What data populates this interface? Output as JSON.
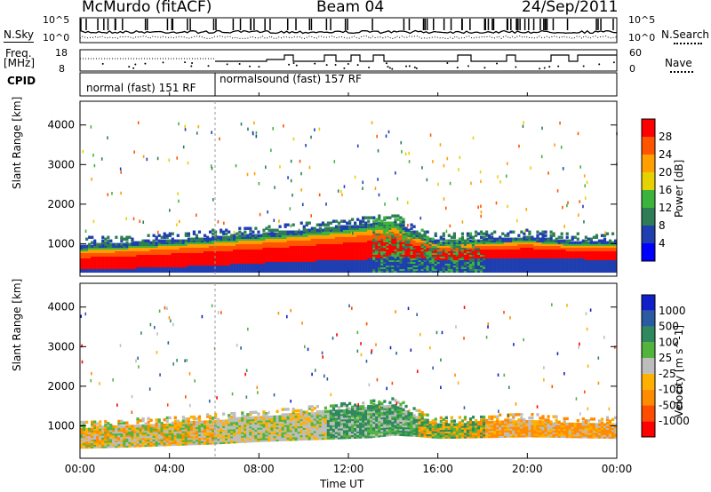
{
  "header": {
    "station": "McMurdo (fitACF)",
    "beam": "Beam 04",
    "date": "24/Sep/2011"
  },
  "top_panels": {
    "nsky_label": "N.Sky",
    "nsky_ticks": [
      "10^5",
      "10^0"
    ],
    "nsearch_label": "N.Search",
    "nsearch_ticks": [
      "10^5",
      "10^0"
    ],
    "freq_label": "Freq.",
    "freq_unit": "[MHz]",
    "freq_ticks": [
      "18",
      "8"
    ],
    "nave_label": "Nave",
    "nave_ticks": [
      "60",
      "0"
    ],
    "cpid_label": "CPID",
    "cpid_segments": [
      {
        "label": "normal (fast) 151 RF",
        "start_hour": 0,
        "end_hour": 6
      },
      {
        "label": "normalsound (fast) 157 RF",
        "start_hour": 6,
        "end_hour": 24
      }
    ]
  },
  "chart_data": [
    {
      "type": "heatmap",
      "title": "",
      "xlabel": "Time UT",
      "ylabel": "Slant Range [km]",
      "xlim": [
        0,
        24
      ],
      "ylim": [
        180,
        4600
      ],
      "x_ticks": [
        "00:00",
        "04:00",
        "08:00",
        "12:00",
        "16:00",
        "20:00",
        "00:00"
      ],
      "y_ticks": [
        1000,
        2000,
        3000,
        4000
      ],
      "colorbar": {
        "label": "Power [dB]",
        "ticks": [
          "28",
          "24",
          "20",
          "16",
          "12",
          "8",
          "4"
        ],
        "colors": [
          "#0000ff",
          "#1f3fb0",
          "#2e7d56",
          "#3cb43c",
          "#e6d200",
          "#ff9f00",
          "#ff5500",
          "#ff0000"
        ]
      },
      "core_band_km": {
        "hours": [
          0,
          2,
          4,
          6,
          8,
          10,
          12,
          13,
          14,
          15,
          16,
          18,
          20,
          22,
          24
        ],
        "lower": [
          350,
          380,
          420,
          460,
          520,
          560,
          600,
          620,
          680,
          650,
          600,
          620,
          640,
          620,
          600
        ],
        "upper": [
          900,
          950,
          1020,
          1100,
          1180,
          1280,
          1380,
          1450,
          1500,
          1200,
          1000,
          1050,
          1100,
          1000,
          1000
        ]
      }
    },
    {
      "type": "heatmap",
      "title": "",
      "xlabel": "Time UT",
      "ylabel": "Slant Range [km]",
      "xlim": [
        0,
        24
      ],
      "ylim": [
        180,
        4600
      ],
      "x_ticks": [
        "00:00",
        "04:00",
        "08:00",
        "12:00",
        "16:00",
        "20:00",
        "00:00"
      ],
      "y_ticks": [
        1000,
        2000,
        3000,
        4000
      ],
      "colorbar": {
        "label": "Velocity [m s^-1]",
        "ticks": [
          "1000",
          "500",
          "100",
          "25",
          "-25",
          "-100",
          "-500",
          "-1000"
        ],
        "colors": [
          "#ff0000",
          "#ff4d00",
          "#ff8c00",
          "#ffb000",
          "#bdbdbd",
          "#52b43c",
          "#2e8a5c",
          "#2a5aa0",
          "#1020c8"
        ]
      }
    }
  ]
}
